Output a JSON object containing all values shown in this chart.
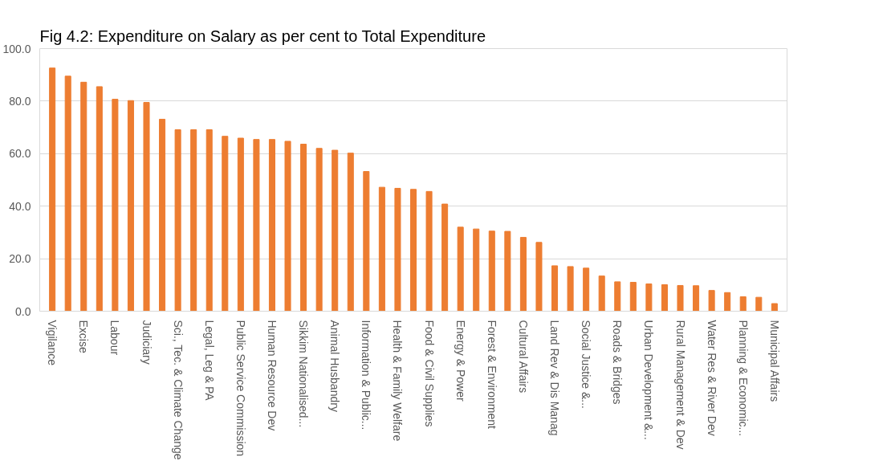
{
  "chart_data": {
    "type": "bar",
    "title": "Fig 4.2: Expenditure on Salary as per cent to Total Expenditure",
    "categories": [
      "Vigilance",
      null,
      "Excise",
      null,
      "Labour",
      null,
      "Judiciary",
      null,
      "Sci., Tec. & Climate Change",
      null,
      "Legal, Leg & PA",
      null,
      "Public Service Commission",
      null,
      "Human Resource Dev",
      null,
      "Sikkim Nationalised...",
      null,
      "Animal Husbandry",
      null,
      "Information & Public...",
      null,
      "Health  & Family Welfare",
      null,
      "Food & Civil Supplies",
      null,
      "Energy & Power",
      null,
      "Forest & Environment",
      null,
      "Cultural Affairs",
      null,
      "Land Rev & Dis Manag",
      null,
      "Social Justice &...",
      null,
      "Roads & Bridges",
      null,
      "Urban Development &...",
      null,
      "Rural Management & Dev",
      null,
      "Water Res & River Dev",
      null,
      "Planning & Economic...",
      null,
      "Municipal Affairs"
    ],
    "values": [
      92.6,
      89.5,
      87.2,
      85.5,
      80.7,
      80.2,
      79.5,
      73.1,
      69.1,
      69.1,
      69.1,
      66.6,
      65.9,
      65.4,
      65.4,
      64.7,
      63.6,
      62.0,
      61.3,
      60.2,
      53.2,
      47.2,
      46.8,
      46.4,
      45.6,
      40.8,
      32.0,
      31.3,
      30.5,
      30.4,
      28.1,
      26.2,
      17.3,
      17.0,
      16.4,
      13.4,
      11.2,
      11.0,
      10.4,
      10.1,
      9.8,
      9.7,
      7.9,
      7.1,
      5.5,
      5.3,
      2.9
    ],
    "color": "#ed7d31",
    "ylim": [
      0,
      100
    ],
    "yticks": [
      {
        "value": 0,
        "label": "0.0"
      },
      {
        "value": 20,
        "label": "20.0"
      },
      {
        "value": 40,
        "label": "40.0"
      },
      {
        "value": 60,
        "label": "60.0"
      },
      {
        "value": 80,
        "label": "80.0"
      },
      {
        "value": 100,
        "label": "100.0"
      }
    ],
    "grid": "y"
  }
}
